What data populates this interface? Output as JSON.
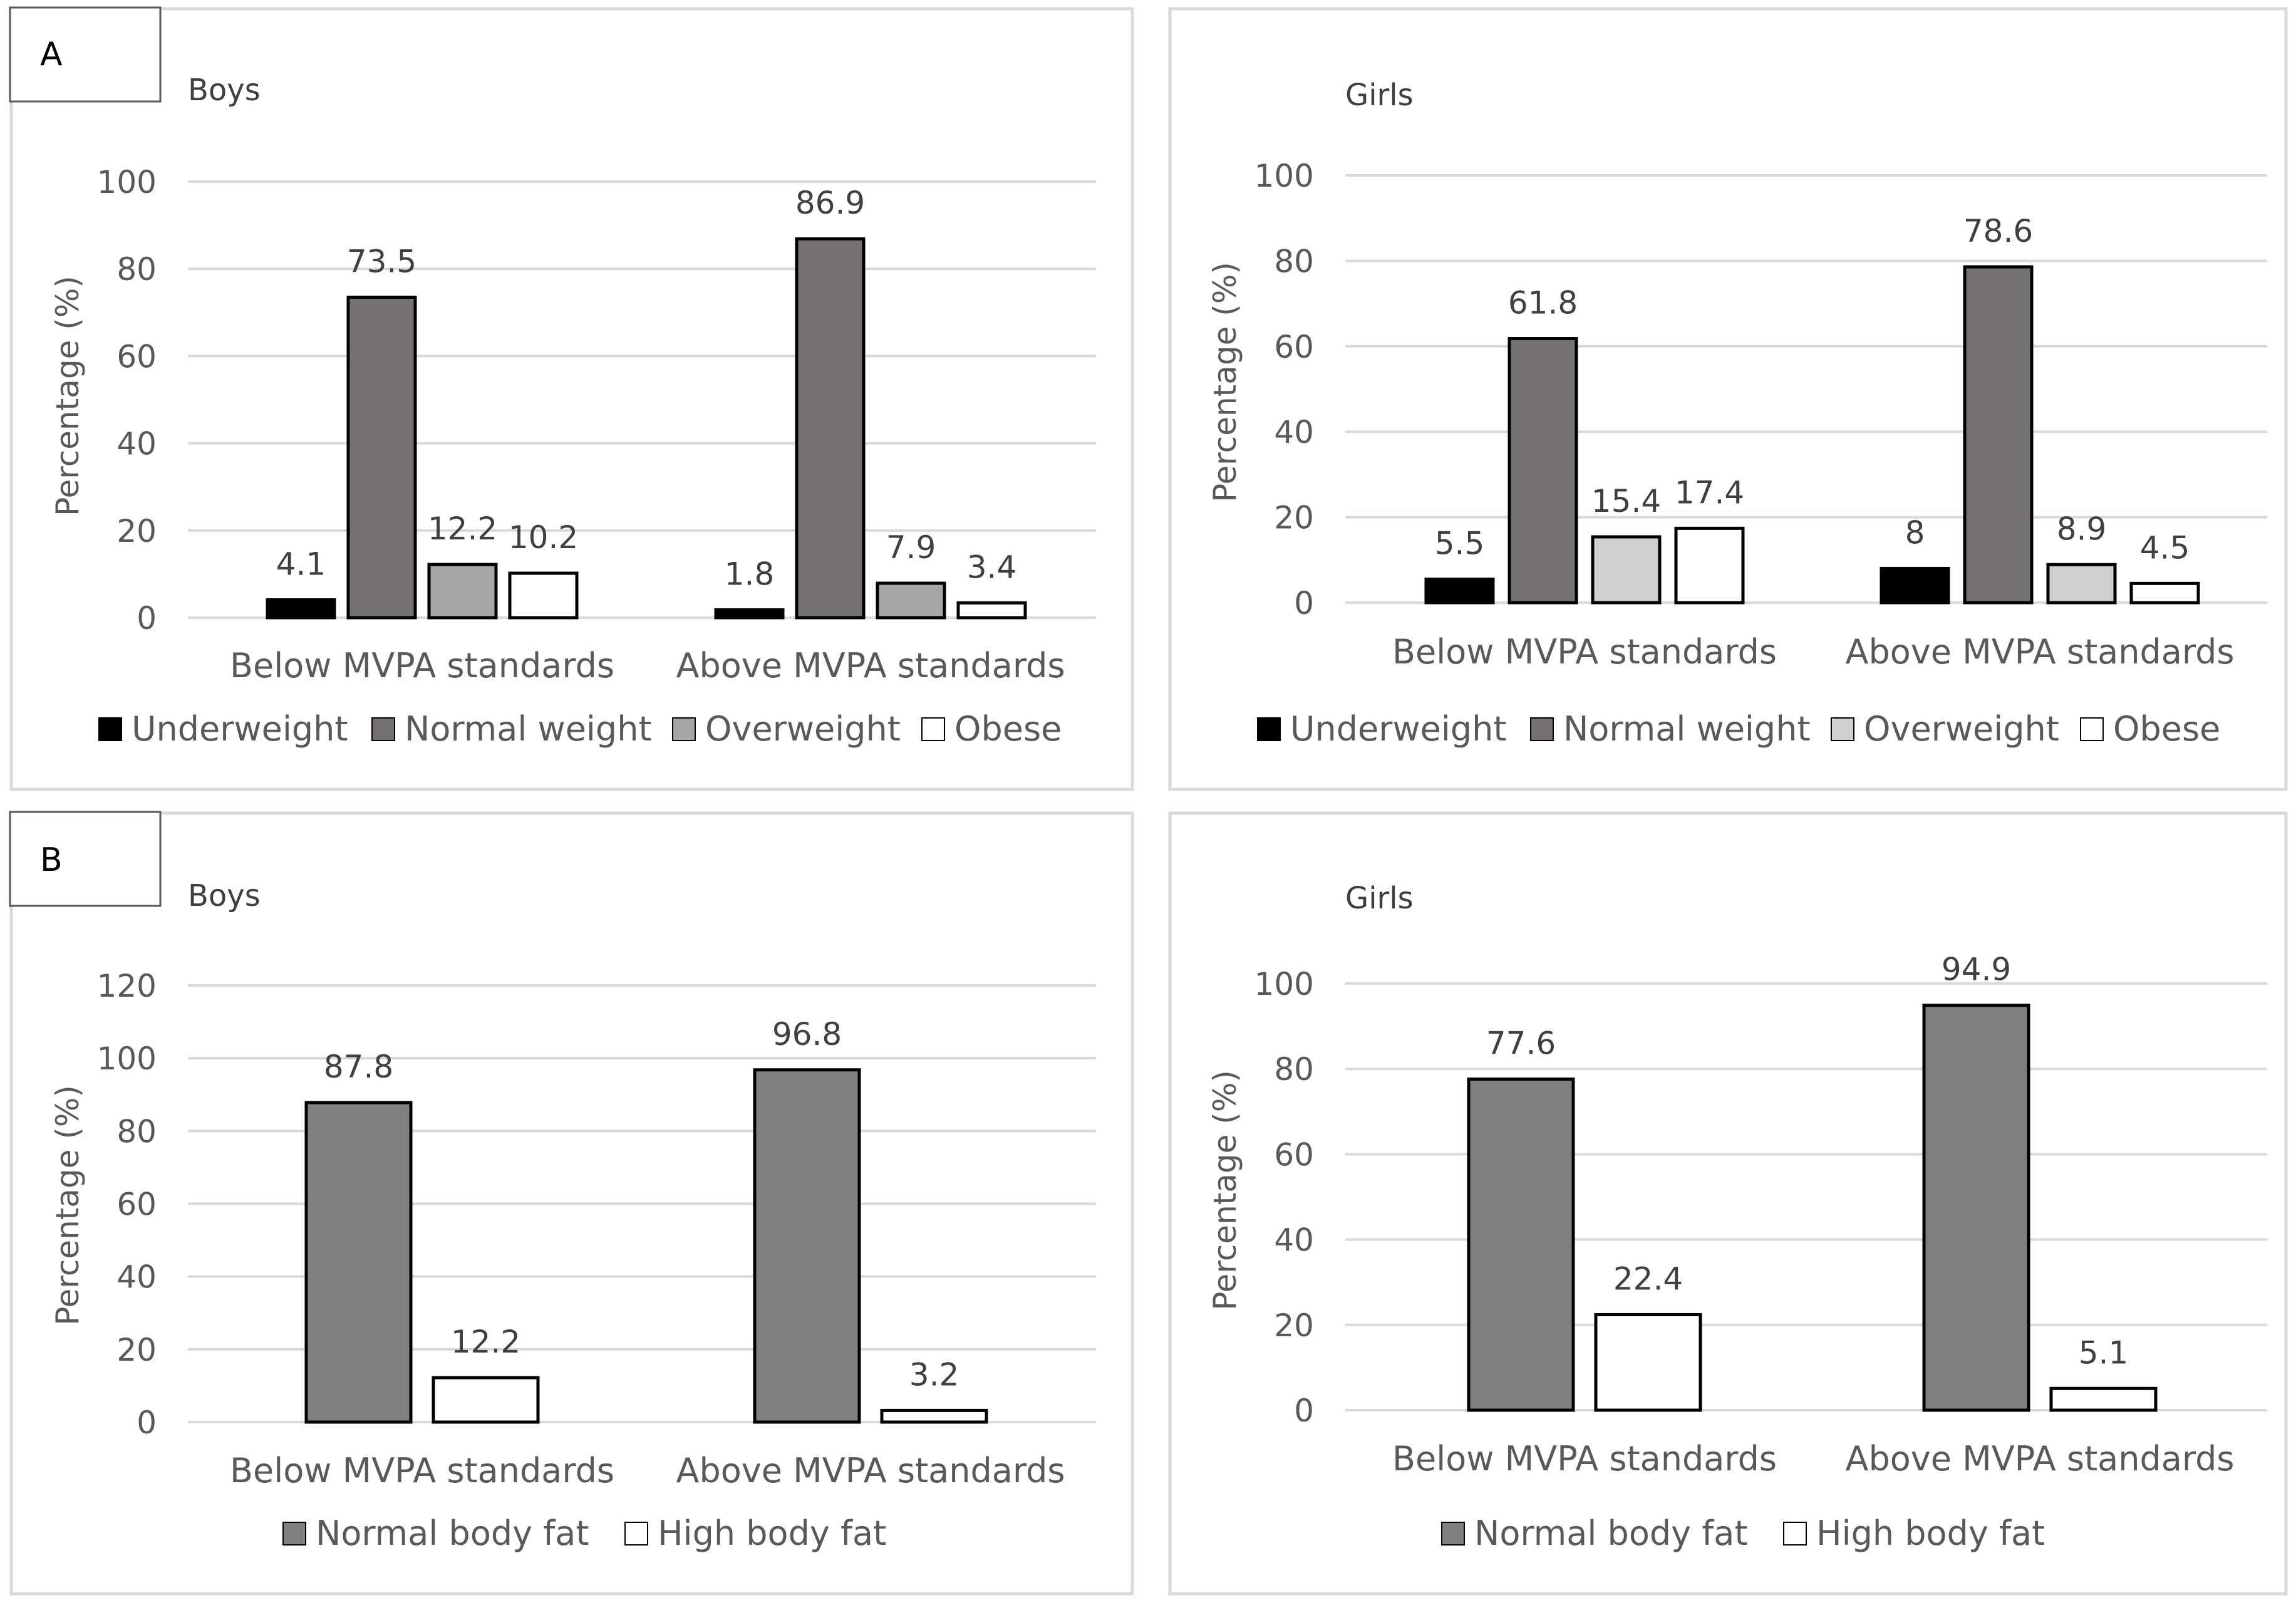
{
  "panels": [
    {
      "label": "A"
    },
    {
      "label": "B"
    }
  ],
  "colors": {
    "underweight": "#000000",
    "normal_weight": "#767171",
    "overweight_boys": "#a6a6a6",
    "overweight_girls": "#d0cece",
    "obese": "#ffffff",
    "normal_body_fat": "#808080",
    "high_body_fat": "#ffffff",
    "gridline": "#d9d9d9",
    "panel_border": "#d9d9d9"
  },
  "chart_data": [
    {
      "type": "bar",
      "panel": "A",
      "title": "Boys",
      "ylabel": "Percentage (%)",
      "ylim": [
        0,
        100
      ],
      "yticks": [
        0,
        20,
        40,
        60,
        80,
        100
      ],
      "categories": [
        "Below MVPA standards",
        "Above MVPA standards"
      ],
      "series": [
        {
          "name": "Underweight",
          "values": [
            4.1,
            1.8
          ],
          "labels": [
            "4.1",
            "1.8"
          ],
          "color": "#000000"
        },
        {
          "name": "Normal weight",
          "values": [
            73.5,
            86.9
          ],
          "labels": [
            "73.5",
            "86.9"
          ],
          "color": "#767171"
        },
        {
          "name": "Overweight",
          "values": [
            12.2,
            7.9
          ],
          "labels": [
            "12.2",
            "7.9"
          ],
          "color": "#a6a6a6"
        },
        {
          "name": "Obese",
          "values": [
            10.2,
            3.4
          ],
          "labels": [
            "10.2",
            "3.4"
          ],
          "color": "#ffffff"
        }
      ],
      "legend": "bottom"
    },
    {
      "type": "bar",
      "panel": "A",
      "title": "Girls",
      "ylabel": "Percentage (%)",
      "ylim": [
        0,
        100
      ],
      "yticks": [
        0,
        20,
        40,
        60,
        80,
        100
      ],
      "categories": [
        "Below MVPA standards",
        "Above MVPA standards"
      ],
      "series": [
        {
          "name": "Underweight",
          "values": [
            5.5,
            8
          ],
          "labels": [
            "5.5",
            "8"
          ],
          "color": "#000000"
        },
        {
          "name": "Normal weight",
          "values": [
            61.8,
            78.6
          ],
          "labels": [
            "61.8",
            "78.6"
          ],
          "color": "#767171"
        },
        {
          "name": "Overweight",
          "values": [
            15.4,
            8.9
          ],
          "labels": [
            "15.4",
            "8.9"
          ],
          "color": "#d0cece"
        },
        {
          "name": "Obese",
          "values": [
            17.4,
            4.5
          ],
          "labels": [
            "17.4",
            "4.5"
          ],
          "color": "#ffffff"
        }
      ],
      "legend": "bottom"
    },
    {
      "type": "bar",
      "panel": "B",
      "title": "Boys",
      "ylabel": "Percentage (%)",
      "ylim": [
        0,
        120
      ],
      "yticks": [
        0,
        20,
        40,
        60,
        80,
        100,
        120
      ],
      "categories": [
        "Below MVPA standards",
        "Above MVPA standards"
      ],
      "series": [
        {
          "name": "Normal body fat",
          "values": [
            87.8,
            96.8
          ],
          "labels": [
            "87.8",
            "96.8"
          ],
          "color": "#808080"
        },
        {
          "name": "High body fat",
          "values": [
            12.2,
            3.2
          ],
          "labels": [
            "12.2",
            "3.2"
          ],
          "color": "#ffffff"
        }
      ],
      "legend": "bottom"
    },
    {
      "type": "bar",
      "panel": "B",
      "title": "Girls",
      "ylabel": "Percentage (%)",
      "ylim": [
        0,
        100
      ],
      "yticks": [
        0,
        20,
        40,
        60,
        80,
        100
      ],
      "categories": [
        "Below MVPA standards",
        "Above MVPA standards"
      ],
      "series": [
        {
          "name": "Normal body fat",
          "values": [
            77.6,
            94.9
          ],
          "labels": [
            "77.6",
            "94.9"
          ],
          "color": "#808080"
        },
        {
          "name": "High body fat",
          "values": [
            22.4,
            5.1
          ],
          "labels": [
            "22.4",
            "5.1"
          ],
          "color": "#ffffff"
        }
      ],
      "legend": "bottom"
    }
  ]
}
